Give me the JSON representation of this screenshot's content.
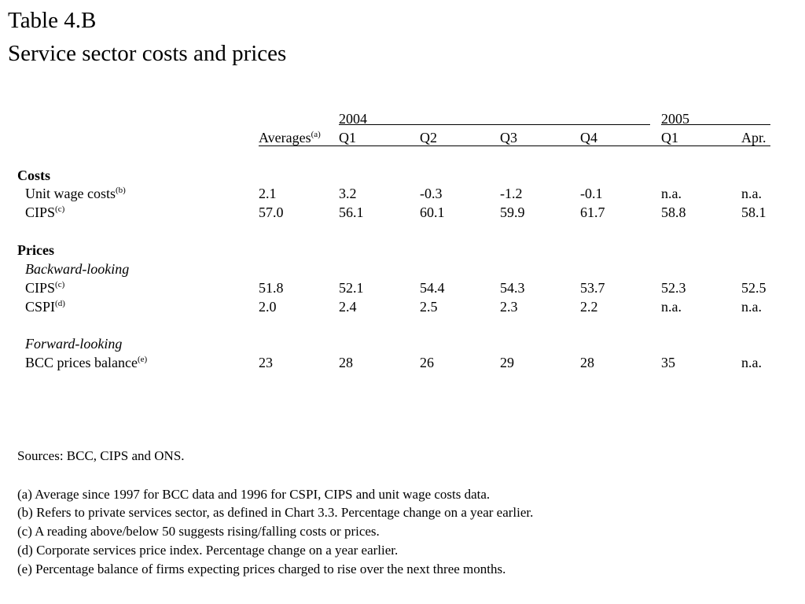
{
  "title": {
    "line1": "Table 4.B",
    "line2": "Service sector costs and prices"
  },
  "header": {
    "year_2004": "2004",
    "year_2005": "2005",
    "averages": "Averages",
    "averages_note": "(a)",
    "columns": [
      "Q1",
      "Q2",
      "Q3",
      "Q4",
      "Q1",
      "Apr."
    ]
  },
  "sections": {
    "costs": "Costs",
    "prices": "Prices",
    "backward": "Backward-looking",
    "forward": "Forward-looking"
  },
  "rows": [
    {
      "label": "Unit wage costs",
      "note": "(b)",
      "values": [
        "2.1",
        "3.2",
        "-0.3",
        "-1.2",
        "-0.1",
        "n.a.",
        "n.a."
      ]
    },
    {
      "label": "CIPS",
      "note": "(c)",
      "values": [
        "57.0",
        "56.1",
        "60.1",
        "59.9",
        "61.7",
        "58.8",
        "58.1"
      ]
    },
    {
      "label": "CIPS",
      "note": "(c)",
      "values": [
        "51.8",
        "52.1",
        "54.4",
        "54.3",
        "53.7",
        "52.3",
        "52.5"
      ]
    },
    {
      "label": "CSPI",
      "note": "(d)",
      "values": [
        "2.0",
        "2.4",
        "2.5",
        "2.3",
        "2.2",
        "n.a.",
        "n.a."
      ]
    },
    {
      "label": "BCC prices balance",
      "note": "(e)",
      "values": [
        "23",
        "28",
        "26",
        "29",
        "28",
        "35",
        "n.a."
      ]
    }
  ],
  "footnotes": {
    "sources": "Sources:  BCC, CIPS and ONS.",
    "a": "(a)  Average since 1997 for BCC data and 1996 for CSPI, CIPS and unit wage costs data.",
    "b": "(b)  Refers to private services sector, as defined in Chart 3.3.  Percentage change on a year earlier.",
    "c": "(c)  A reading above/below 50 suggests rising/falling costs or prices.",
    "d": "(d)  Corporate services price index.  Percentage change on a year earlier.",
    "e": "(e)  Percentage balance of firms expecting prices charged to rise over the next three months."
  }
}
